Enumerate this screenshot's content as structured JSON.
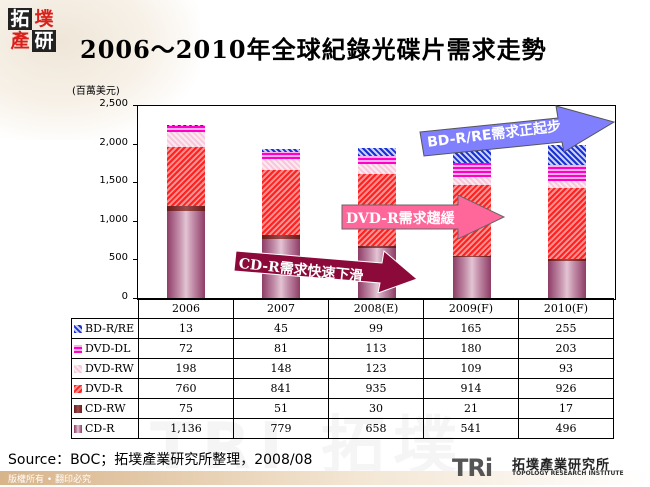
{
  "header": {
    "logo_chars": [
      "拓",
      "墣",
      "產",
      "研"
    ],
    "title": "2006～2010年全球紀錄光碟片需求走勢"
  },
  "chart_data": {
    "type": "bar",
    "stacked": true,
    "title": "2006～2010年全球紀錄光碟片需求走勢",
    "ylabel": "(百萬美元)",
    "xlabel": "",
    "ylim": [
      0,
      2500
    ],
    "yticks": [
      "0",
      "500",
      "1,000",
      "1,500",
      "2,000",
      "2,500"
    ],
    "categories": [
      "2006",
      "2007",
      "2008(E)",
      "2009(F)",
      "2010(F)"
    ],
    "series": [
      {
        "name": "CD-R",
        "key": "cdr",
        "values": [
          1136,
          779,
          658,
          541,
          496
        ],
        "display": [
          "1,136",
          "779",
          "658",
          "541",
          "496"
        ]
      },
      {
        "name": "CD-RW",
        "key": "cdrw",
        "values": [
          75,
          51,
          30,
          21,
          17
        ],
        "display": [
          "75",
          "51",
          "30",
          "21",
          "17"
        ]
      },
      {
        "name": "DVD-R",
        "key": "dvdr",
        "values": [
          760,
          841,
          935,
          914,
          926
        ],
        "display": [
          "760",
          "841",
          "935",
          "914",
          "926"
        ]
      },
      {
        "name": "DVD-RW",
        "key": "dvdrw",
        "values": [
          198,
          148,
          123,
          109,
          93
        ],
        "display": [
          "198",
          "148",
          "123",
          "109",
          "93"
        ]
      },
      {
        "name": "DVD-DL",
        "key": "dvddl",
        "values": [
          72,
          81,
          113,
          180,
          203
        ],
        "display": [
          "72",
          "81",
          "113",
          "180",
          "203"
        ]
      },
      {
        "name": "BD-R/RE",
        "key": "bdr",
        "values": [
          13,
          45,
          99,
          165,
          255
        ],
        "display": [
          "13",
          "45",
          "99",
          "165",
          "255"
        ]
      }
    ],
    "table_row_order": [
      "BD-R/RE",
      "DVD-DL",
      "DVD-RW",
      "DVD-R",
      "CD-RW",
      "CD-R"
    ],
    "annotations": [
      {
        "text": "BD-R/RE需求正起步",
        "color": "#8080ff"
      },
      {
        "text": "DVD-R需求趨緩",
        "color": "#ff6699"
      },
      {
        "text": "CD-R需求快速下滑",
        "color": "#8b0a3a"
      }
    ],
    "legend_position": "data-table",
    "grid": false
  },
  "colors": {
    "cdr": "#b06a8c",
    "cdrw": "#7a2a2a",
    "dvdr": "#ff2020",
    "dvdrw": "#f7c8dc",
    "dvddl": "#ff00cc",
    "bdr": "#1a2fd0"
  },
  "footer": {
    "source": "Source：BOC；拓墣產業研究所整理，2008/08",
    "copyright": "版權所有 • 翻印必究",
    "org_logo_text": "TRi",
    "org_name_cn": "拓墣產業研究所",
    "org_name_en": "TOPOLOGY RESEARCH INSTITUTE"
  }
}
